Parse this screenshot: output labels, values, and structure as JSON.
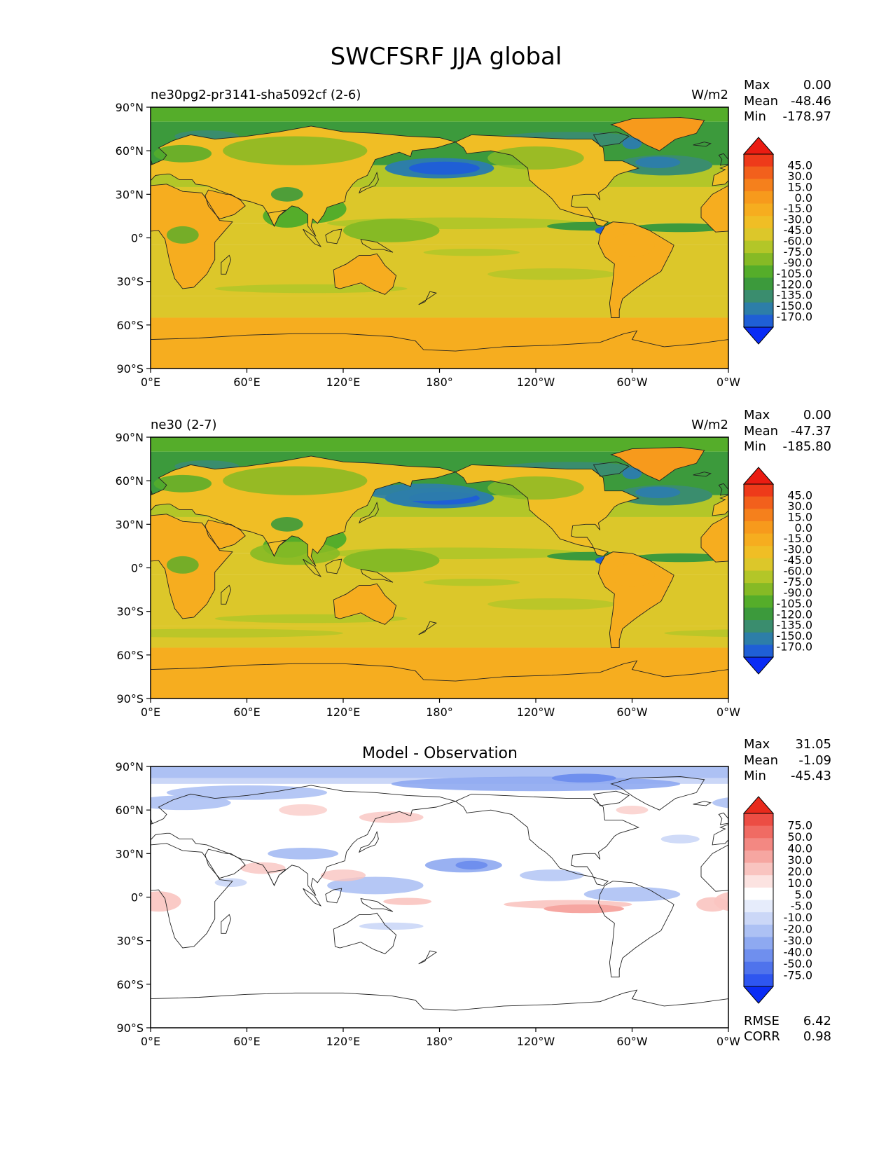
{
  "title": "SWCFSRF JJA global",
  "x_ticks": [
    "0°E",
    "60°E",
    "120°E",
    "180°",
    "120°W",
    "60°W",
    "0°W"
  ],
  "y_ticks": [
    "90°N",
    "60°N",
    "30°N",
    "0°",
    "30°S",
    "60°S",
    "90°S"
  ],
  "stat_labels": {
    "max": "Max",
    "mean": "Mean",
    "min": "Min",
    "rmse": "RMSE",
    "corr": "CORR"
  },
  "colors": {
    "model": [
      "#0a2cf5",
      "#1f5fd6",
      "#2d7ea8",
      "#3a8d6e",
      "#3c9a3c",
      "#55ad2a",
      "#86ba25",
      "#b3c628",
      "#dcc72a",
      "#f0be25",
      "#f6ad1f",
      "#f79a1c",
      "#f5801c",
      "#f2601c",
      "#ee3a1a",
      "#ea1c12"
    ],
    "diff": [
      "#0a2cf5",
      "#2e56f0",
      "#4f73ec",
      "#6f8fee",
      "#8ea9f1",
      "#adc1f4",
      "#cbd7f7",
      "#e6ecfb",
      "#ffffff",
      "#fce3e1",
      "#f9c4c0",
      "#f6a6a1",
      "#f38882",
      "#f06b63",
      "#ec4d44",
      "#e82a1c"
    ]
  },
  "panels": [
    {
      "id": "test",
      "left_title": "ne30pg2-pr3141-sha5092cf (2-6)",
      "center_title": "",
      "units": "W/m2",
      "max": "0.00",
      "mean": "-48.46",
      "min": "-178.97",
      "colorbar_levels": [
        "45.0",
        "30.0",
        "15.0",
        "0.0",
        "-15.0",
        "-30.0",
        "-45.0",
        "-60.0",
        "-75.0",
        "-90.0",
        "-105.0",
        "-120.0",
        "-135.0",
        "-150.0",
        "-170.0"
      ]
    },
    {
      "id": "reference",
      "left_title": "ne30 (2-7)",
      "center_title": "",
      "units": "W/m2",
      "max": "0.00",
      "mean": "-47.37",
      "min": "-185.80",
      "colorbar_levels": [
        "45.0",
        "30.0",
        "15.0",
        "0.0",
        "-15.0",
        "-30.0",
        "-45.0",
        "-60.0",
        "-75.0",
        "-90.0",
        "-105.0",
        "-120.0",
        "-135.0",
        "-150.0",
        "-170.0"
      ]
    },
    {
      "id": "difference",
      "left_title": "",
      "center_title": "Model - Observation",
      "units": "",
      "max": "31.05",
      "mean": "-1.09",
      "min": "-45.43",
      "rmse": "6.42",
      "corr": "0.98",
      "colorbar_levels": [
        "75.0",
        "50.0",
        "40.0",
        "30.0",
        "20.0",
        "10.0",
        "5.0",
        "-5.0",
        "-10.0",
        "-20.0",
        "-30.0",
        "-40.0",
        "-50.0",
        "-75.0"
      ]
    }
  ],
  "chart_data": [
    {
      "type": "heatmap",
      "title": "ne30pg2-pr3141-sha5092cf (2-6)",
      "units": "W/m2",
      "xlim": [
        0,
        360
      ],
      "ylim": [
        -90,
        90
      ],
      "stats": {
        "max": 0.0,
        "mean": -48.46,
        "min": -178.97
      },
      "levels": [
        45,
        30,
        15,
        0,
        -15,
        -30,
        -45,
        -60,
        -75,
        -90,
        -105,
        -120,
        -135,
        -150,
        -170
      ]
    },
    {
      "type": "heatmap",
      "title": "ne30 (2-7)",
      "units": "W/m2",
      "xlim": [
        0,
        360
      ],
      "ylim": [
        -90,
        90
      ],
      "stats": {
        "max": 0.0,
        "mean": -47.37,
        "min": -185.8
      },
      "levels": [
        45,
        30,
        15,
        0,
        -15,
        -30,
        -45,
        -60,
        -75,
        -90,
        -105,
        -120,
        -135,
        -150,
        -170
      ]
    },
    {
      "type": "heatmap",
      "title": "Model - Observation",
      "xlim": [
        0,
        360
      ],
      "ylim": [
        -90,
        90
      ],
      "stats": {
        "max": 31.05,
        "mean": -1.09,
        "min": -45.43,
        "rmse": 6.42,
        "corr": 0.98
      },
      "levels": [
        75,
        50,
        40,
        30,
        20,
        10,
        5,
        -5,
        -10,
        -20,
        -30,
        -40,
        -50,
        -75
      ]
    }
  ]
}
